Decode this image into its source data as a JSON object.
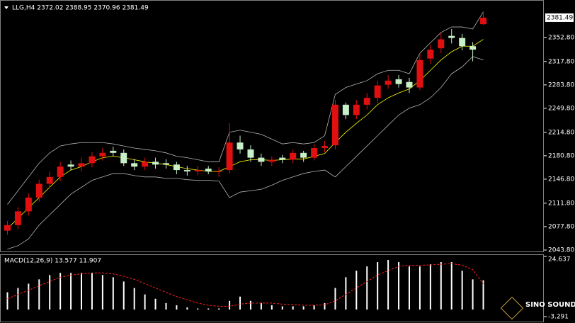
{
  "chart_data": [
    {
      "type": "candlestick",
      "title": "LLG,H4 2372.02 2388.95 2370.96 2381.49",
      "open": [
        2072,
        2080,
        2100,
        2120,
        2140,
        2150,
        2168,
        2165,
        2170,
        2180,
        2188,
        2185,
        2170,
        2165,
        2172,
        2170,
        2168,
        2160,
        2158,
        2162,
        2158,
        2160,
        2200,
        2190,
        2178,
        2172,
        2178,
        2175,
        2185,
        2178,
        2192,
        2196,
        2255,
        2240,
        2255,
        2265,
        2284,
        2292,
        2288,
        2280,
        2322,
        2337,
        2355,
        2352,
        2340,
        2372.02
      ],
      "high": [
        2086,
        2106,
        2126,
        2146,
        2158,
        2172,
        2174,
        2178,
        2186,
        2192,
        2194,
        2190,
        2176,
        2178,
        2178,
        2176,
        2172,
        2166,
        2166,
        2166,
        2164,
        2228,
        2210,
        2196,
        2184,
        2180,
        2182,
        2190,
        2188,
        2198,
        2202,
        2262,
        2258,
        2262,
        2272,
        2290,
        2298,
        2298,
        2294,
        2330,
        2342,
        2360,
        2365,
        2358,
        2346,
        2388.95
      ],
      "low": [
        2066,
        2074,
        2094,
        2114,
        2134,
        2144,
        2160,
        2158,
        2164,
        2174,
        2180,
        2166,
        2160,
        2160,
        2162,
        2162,
        2154,
        2152,
        2152,
        2154,
        2150,
        2155,
        2184,
        2172,
        2166,
        2166,
        2170,
        2170,
        2172,
        2174,
        2186,
        2190,
        2234,
        2234,
        2248,
        2258,
        2278,
        2280,
        2272,
        2276,
        2314,
        2330,
        2344,
        2334,
        2318,
        2370.96
      ],
      "close": [
        2080,
        2100,
        2120,
        2140,
        2150,
        2165,
        2165,
        2170,
        2180,
        2185,
        2185,
        2170,
        2165,
        2172,
        2168,
        2168,
        2160,
        2158,
        2160,
        2158,
        2158,
        2200,
        2190,
        2178,
        2172,
        2175,
        2175,
        2185,
        2178,
        2192,
        2195,
        2255,
        2240,
        2255,
        2265,
        2283,
        2290,
        2285,
        2280,
        2320,
        2335,
        2350,
        2352,
        2340,
        2335,
        2381.49
      ],
      "up_color": "#e01010",
      "down_color": "#c8f0c8",
      "series": [
        {
          "color": "#b4b4b4",
          "values": [
            2110,
            2130,
            2150,
            2170,
            2185,
            2195,
            2198,
            2200,
            2200,
            2200,
            2198,
            2195,
            2192,
            2190,
            2188,
            2185,
            2180,
            2178,
            2175,
            2172,
            2172,
            2215,
            2218,
            2215,
            2212,
            2205,
            2198,
            2200,
            2198,
            2200,
            2210,
            2270,
            2280,
            2285,
            2290,
            2300,
            2305,
            2305,
            2300,
            2330,
            2345,
            2360,
            2368,
            2368,
            2365,
            2390
          ]
        },
        {
          "color": "#b4b4b4",
          "values": [
            2045,
            2050,
            2060,
            2080,
            2095,
            2110,
            2125,
            2135,
            2145,
            2150,
            2155,
            2155,
            2152,
            2150,
            2150,
            2148,
            2148,
            2146,
            2145,
            2145,
            2144,
            2120,
            2128,
            2130,
            2132,
            2138,
            2145,
            2150,
            2155,
            2158,
            2160,
            2150,
            2165,
            2180,
            2195,
            2210,
            2225,
            2240,
            2250,
            2255,
            2265,
            2280,
            2300,
            2310,
            2325,
            2320
          ]
        },
        {
          "color": "#ffff00",
          "values": [
            2075,
            2090,
            2105,
            2120,
            2135,
            2150,
            2160,
            2165,
            2172,
            2178,
            2180,
            2178,
            2175,
            2172,
            2170,
            2168,
            2165,
            2162,
            2160,
            2158,
            2158,
            2165,
            2172,
            2175,
            2175,
            2174,
            2175,
            2176,
            2176,
            2180,
            2184,
            2200,
            2215,
            2228,
            2240,
            2255,
            2265,
            2272,
            2278,
            2290,
            2305,
            2320,
            2332,
            2340,
            2340,
            2350
          ]
        }
      ],
      "ylim": [
        2041.7,
        2401
      ],
      "yticks": [
        {
          "value": 2352.8,
          "label": "2352.80"
        },
        {
          "value": 2317.8,
          "label": "2317.80"
        },
        {
          "value": 2283.8,
          "label": "2283.80"
        },
        {
          "value": 2249.8,
          "label": "2249.80"
        },
        {
          "value": 2214.8,
          "label": "2214.80"
        },
        {
          "value": 2180.8,
          "label": "2180.80"
        },
        {
          "value": 2146.8,
          "label": "2146.80"
        },
        {
          "value": 2111.8,
          "label": "2111.80"
        },
        {
          "value": 2077.8,
          "label": "2077.80"
        },
        {
          "value": 2043.8,
          "label": "2043.80"
        }
      ],
      "last_price": 2381.49
    },
    {
      "type": "macd",
      "title": "MACD(12,26,9) 13.577 11.907",
      "series": [
        {
          "color": "#ffffff",
          "values": [
            8,
            10,
            12,
            14,
            16,
            17,
            17,
            17,
            17,
            16,
            15,
            13,
            10,
            7,
            5,
            3,
            2,
            1,
            0.5,
            0.5,
            0.5,
            4,
            6,
            4,
            3,
            2,
            1.5,
            1.5,
            1.5,
            2,
            3,
            10,
            15,
            18,
            20,
            22,
            23,
            22,
            20,
            20,
            21,
            22,
            22,
            18,
            14,
            13.577
          ]
        },
        {
          "color": "#ff2020",
          "values": [
            5,
            7,
            9,
            11,
            13,
            15,
            16,
            16.5,
            17,
            17,
            16.5,
            15.5,
            14,
            12,
            10,
            8,
            6,
            4.5,
            3,
            2,
            1.5,
            1.5,
            2.5,
            3,
            3,
            3,
            2.5,
            2.3,
            2,
            2,
            2.2,
            4,
            7,
            10,
            13,
            16,
            18,
            20,
            20.5,
            20.5,
            20.7,
            21,
            21.3,
            20.5,
            18.5,
            11.907
          ]
        }
      ],
      "ylim": [
        -3.291,
        24.637
      ],
      "yticks": [
        24.637,
        -3.291
      ]
    }
  ],
  "watermark": "SINO SOUND"
}
